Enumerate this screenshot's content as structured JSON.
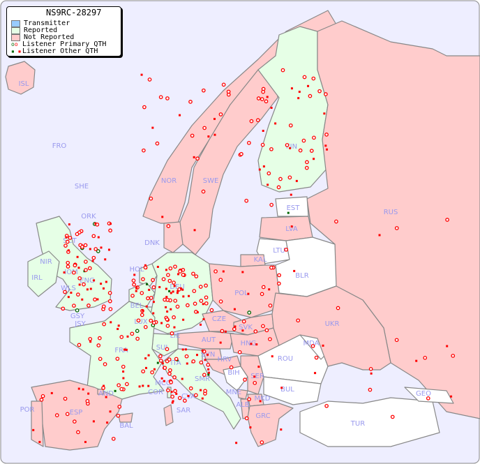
{
  "title": "NS9RC-28297",
  "legend": {
    "transmitter": "Transmitter",
    "reported": "Reported",
    "not_reported": "Not Reported",
    "primary": "Listener Primary QTH",
    "other": "Listener Other QTH"
  },
  "colors": {
    "sea": "#eeeeff",
    "transmitter": "#99ccff",
    "reported": "#e6ffe6",
    "not_reported": "#ffcccc",
    "other_country": "#ffffff",
    "marker_red": "#ff0000",
    "marker_green": "#006600"
  },
  "countries": {
    "reported": [
      "FIN",
      "SCT",
      "NIR",
      "IRL",
      "IOM",
      "ENG",
      "WLS",
      "GSY",
      "JSY",
      "HOL",
      "BEL",
      "LUX",
      "DEU",
      "FRA",
      "ITA",
      "SUI",
      "LIE",
      "SMR",
      "MCO",
      "COR",
      "CVA"
    ],
    "not_reported": [
      "ISL",
      "FRO",
      "SHE",
      "ORK",
      "NOR",
      "SWE",
      "DNK",
      "LVA",
      "KAL",
      "RUS",
      "POL",
      "CZE",
      "SVK",
      "HNG",
      "AUT",
      "SVN",
      "HRV",
      "SER",
      "MNE",
      "ALB",
      "MKD",
      "GRC",
      "UKR",
      "ESP",
      "POR",
      "AND",
      "BAL",
      "SAR"
    ],
    "other": [
      "EST",
      "LTU",
      "BLR",
      "MDA",
      "ROU",
      "BUL",
      "BIH",
      "TUR",
      "GEO"
    ]
  },
  "labels": [
    "ISL",
    "FRO",
    "SHE",
    "ORK",
    "NOR",
    "SWE",
    "FIN",
    "EST",
    "LVA",
    "LTU",
    "KAL",
    "RUS",
    "BLR",
    "DNK",
    "HOL",
    "BEL",
    "LUX",
    "DEU",
    "POL",
    "CZE",
    "SVK",
    "HNG",
    "AUT",
    "LIE",
    "SUI",
    "FRA",
    "ITA",
    "SVN",
    "HRV",
    "BIH",
    "SER",
    "MNE",
    "ALB",
    "MKD",
    "GRC",
    "BUL",
    "ROU",
    "MDA",
    "UKR",
    "TUR",
    "GEO",
    "SMR",
    "MCO",
    "COR",
    "CVA",
    "SAR",
    "AND",
    "ESP",
    "POR",
    "BAL",
    "SCT",
    "NIR",
    "IRL",
    "IOM",
    "ENG",
    "WLS",
    "GSY",
    "JSY"
  ]
}
